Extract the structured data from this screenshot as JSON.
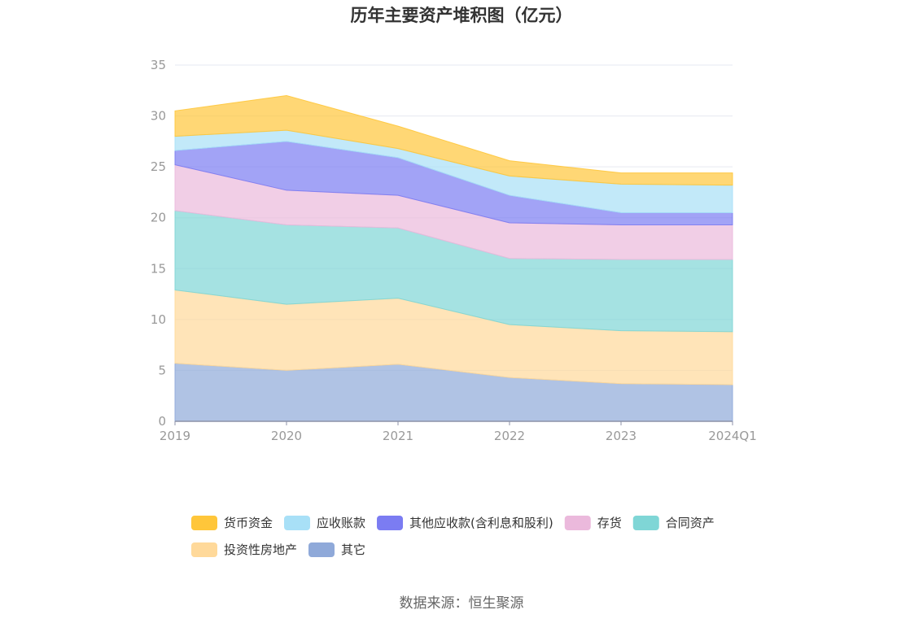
{
  "chart_data": {
    "type": "area",
    "stacked": true,
    "title": "历年主要资产堆积图（亿元）",
    "x": [
      "2019",
      "2020",
      "2021",
      "2022",
      "2023",
      "2024Q1"
    ],
    "ylim": [
      0,
      35
    ],
    "yticks": [
      0,
      5,
      10,
      15,
      20,
      25,
      30,
      35
    ],
    "grid": true,
    "legend_position": "bottom",
    "series": [
      {
        "name": "其它",
        "color": "#8fa9d9",
        "values": [
          5.7,
          5.0,
          5.6,
          4.3,
          3.7,
          3.6
        ]
      },
      {
        "name": "投资性房地产",
        "color": "#ffd99a",
        "values": [
          7.2,
          6.5,
          6.5,
          5.2,
          5.2,
          5.2
        ]
      },
      {
        "name": "合同资产",
        "color": "#7fd6d6",
        "values": [
          7.8,
          7.8,
          6.9,
          6.5,
          7.0,
          7.1
        ]
      },
      {
        "name": "存货",
        "color": "#ebb9dc",
        "values": [
          4.5,
          3.4,
          3.2,
          3.5,
          3.4,
          3.4
        ]
      },
      {
        "name": "其他应收款(含利息和股利)",
        "color": "#7b7cf2",
        "values": [
          1.4,
          4.8,
          3.7,
          2.7,
          1.2,
          1.2
        ]
      },
      {
        "name": "应收账款",
        "color": "#a8e0f7",
        "values": [
          1.4,
          1.1,
          0.9,
          1.9,
          2.8,
          2.7
        ]
      },
      {
        "name": "货币资金",
        "color": "#ffc63a",
        "values": [
          2.5,
          3.4,
          2.2,
          1.5,
          1.1,
          1.2
        ]
      }
    ],
    "legend_order": [
      "货币资金",
      "应收账款",
      "其他应收款(含利息和股利)",
      "存货",
      "合同资产",
      "投资性房地产",
      "其它"
    ],
    "source": "数据来源：恒生聚源"
  }
}
